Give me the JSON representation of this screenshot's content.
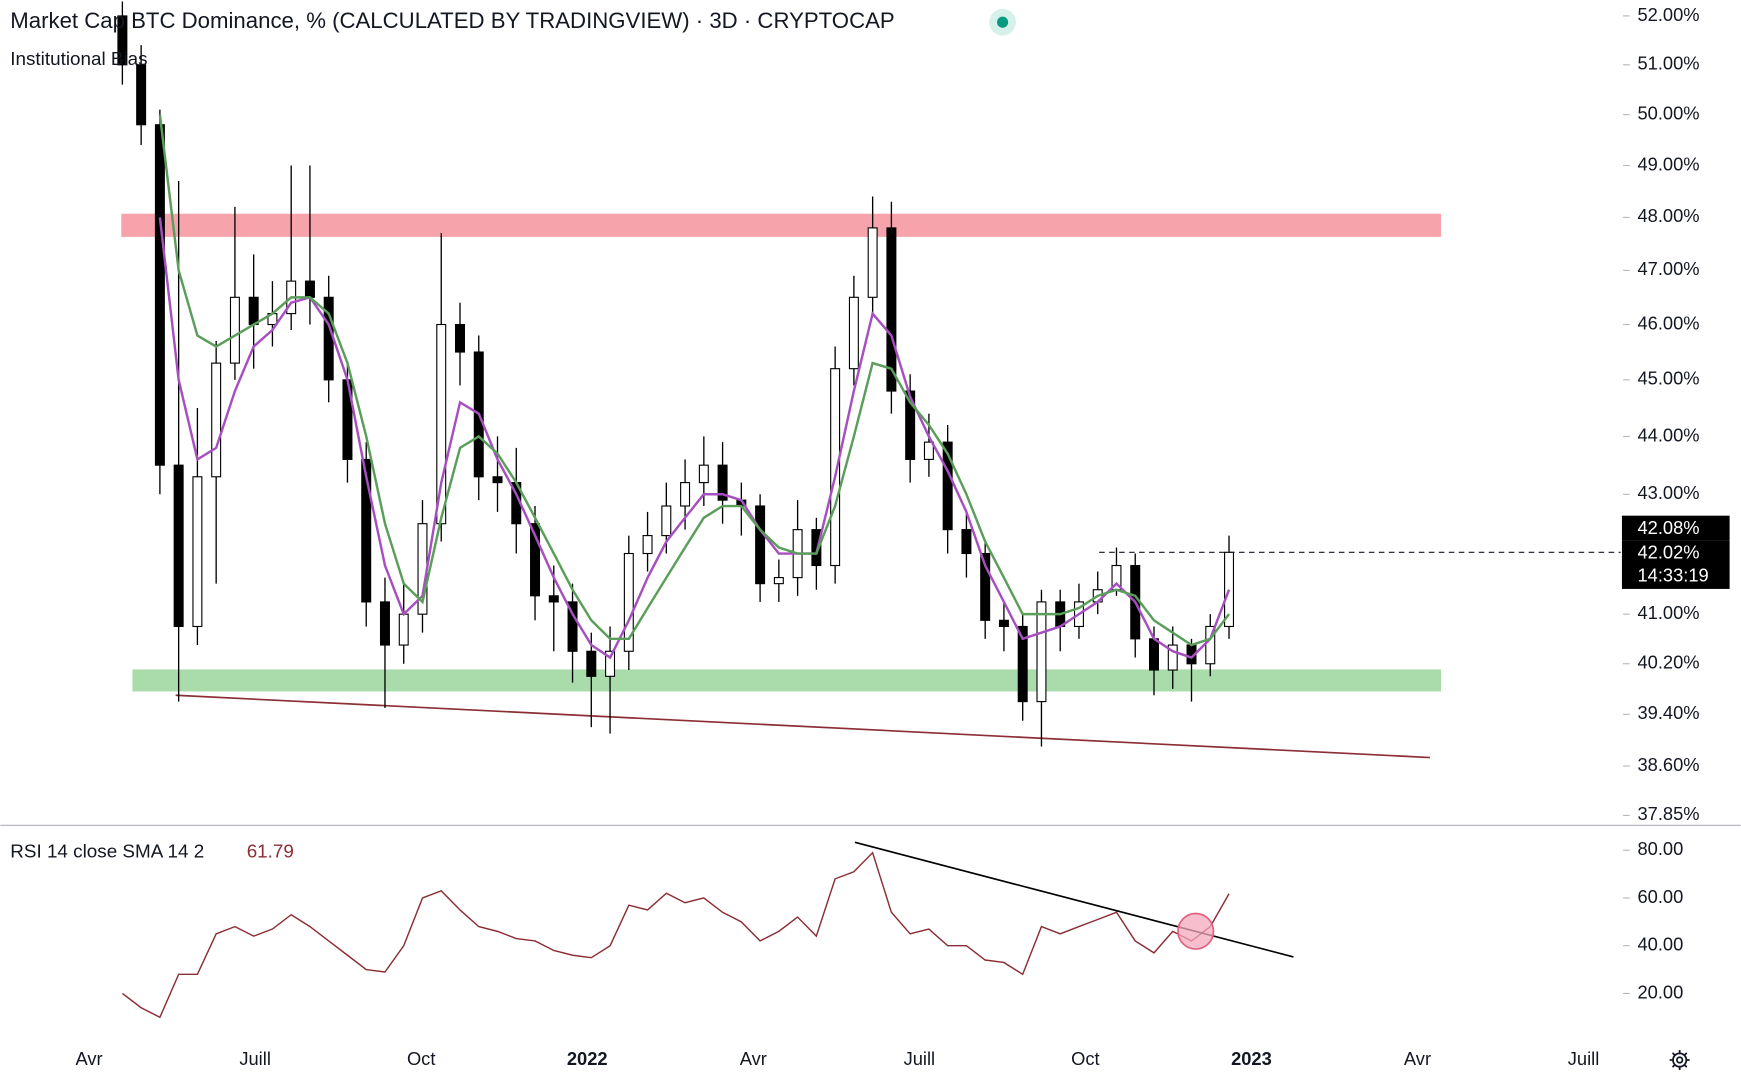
{
  "chart_data": [
    {
      "type": "candlestick",
      "title": "Market Cap BTC Dominance, % (CALCULATED BY TRADINGVIEW) · 3D · CRYPTOCAP",
      "subtitle": "Institutional Bias",
      "log_scale": true,
      "ylim": [
        37.71,
        52.33
      ],
      "yticks": [
        {
          "value": 52,
          "label": "52.00%"
        },
        {
          "value": 51,
          "label": "51.00%"
        },
        {
          "value": 50,
          "label": "50.00%"
        },
        {
          "value": 49,
          "label": "49.00%"
        },
        {
          "value": 48,
          "label": "48.00%"
        },
        {
          "value": 47,
          "label": "47.00%"
        },
        {
          "value": 46,
          "label": "46.00%"
        },
        {
          "value": 45,
          "label": "45.00%"
        },
        {
          "value": 44,
          "label": "44.00%"
        },
        {
          "value": 43,
          "label": "43.00%"
        },
        {
          "value": 41,
          "label": "41.00%"
        },
        {
          "value": 40.2,
          "label": "40.20%"
        },
        {
          "value": 39.4,
          "label": "39.40%"
        },
        {
          "value": 38.6,
          "label": "38.60%"
        },
        {
          "value": 37.85,
          "label": "37.85%"
        }
      ],
      "open": [
        52.0,
        51.0,
        49.8,
        43.5,
        40.8,
        43.3,
        45.3,
        46.5,
        46.0,
        46.2,
        46.8,
        46.5,
        45.0,
        43.6,
        41.2,
        40.5,
        41.0,
        42.5,
        46.0,
        45.5,
        43.3,
        43.2,
        42.5,
        41.3,
        41.2,
        40.4,
        40.0,
        40.4,
        42.0,
        42.3,
        42.8,
        43.2,
        43.5,
        42.9,
        42.8,
        41.5,
        41.6,
        42.4,
        41.8,
        45.2,
        46.5,
        47.8,
        44.8,
        43.6,
        43.9,
        42.4,
        42.0,
        40.9,
        40.8,
        39.6,
        41.2,
        40.8,
        41.2,
        41.4,
        41.8,
        40.6,
        40.1,
        40.5,
        40.2,
        40.8
      ],
      "high": [
        52.3,
        51.4,
        50.1,
        48.7,
        44.5,
        45.7,
        48.2,
        47.3,
        46.8,
        49.0,
        49.0,
        46.9,
        45.3,
        43.9,
        41.6,
        41.5,
        42.9,
        47.7,
        46.4,
        45.8,
        44.0,
        43.8,
        42.8,
        41.8,
        41.5,
        40.7,
        40.8,
        42.3,
        42.7,
        43.2,
        43.6,
        44.0,
        43.9,
        43.2,
        43.0,
        41.9,
        42.9,
        42.6,
        45.6,
        46.9,
        48.4,
        48.3,
        45.1,
        44.4,
        44.2,
        42.7,
        42.2,
        41.2,
        41.0,
        41.4,
        41.4,
        41.5,
        41.7,
        42.1,
        42.0,
        40.8,
        40.8,
        40.6,
        41.0,
        42.3
      ],
      "low": [
        50.6,
        49.4,
        43.0,
        39.6,
        40.5,
        41.5,
        45.0,
        45.2,
        45.6,
        45.9,
        46.0,
        44.6,
        43.2,
        40.8,
        39.5,
        40.2,
        40.7,
        42.2,
        44.9,
        42.9,
        42.7,
        42.0,
        40.9,
        40.4,
        39.9,
        39.2,
        39.1,
        40.1,
        41.7,
        42.0,
        42.4,
        42.8,
        42.5,
        42.3,
        41.2,
        41.2,
        41.3,
        41.4,
        41.5,
        44.9,
        46.2,
        44.4,
        43.2,
        43.3,
        42.0,
        41.6,
        40.6,
        40.4,
        39.3,
        38.9,
        40.4,
        40.6,
        41.0,
        41.3,
        40.3,
        39.7,
        39.8,
        39.6,
        40.0,
        40.6
      ],
      "close": [
        51.0,
        49.8,
        43.5,
        40.8,
        43.3,
        45.3,
        46.5,
        46.0,
        46.2,
        46.8,
        46.5,
        45.0,
        43.6,
        41.2,
        40.5,
        41.0,
        42.5,
        46.0,
        45.5,
        43.3,
        43.2,
        42.5,
        41.3,
        41.2,
        40.4,
        40.0,
        40.4,
        42.0,
        42.3,
        42.8,
        43.2,
        43.5,
        42.9,
        42.8,
        41.5,
        41.6,
        42.4,
        41.8,
        45.2,
        46.5,
        47.8,
        44.8,
        43.6,
        43.9,
        42.4,
        42.0,
        40.9,
        40.8,
        39.6,
        41.2,
        40.8,
        41.2,
        41.4,
        41.8,
        40.6,
        40.1,
        40.5,
        40.2,
        40.8,
        42.02
      ],
      "overlays": [
        {
          "color": "#a64fc0",
          "values": [
            null,
            null,
            48.0,
            45.0,
            43.6,
            43.8,
            44.8,
            45.6,
            45.9,
            46.4,
            46.5,
            46.0,
            45.0,
            43.3,
            41.8,
            41.0,
            41.3,
            43.2,
            44.6,
            44.4,
            43.6,
            43.0,
            42.3,
            41.6,
            41.0,
            40.5,
            40.3,
            40.9,
            41.6,
            42.2,
            42.6,
            43.0,
            43.0,
            42.9,
            42.4,
            42.0,
            42.0,
            42.0,
            43.3,
            44.8,
            46.2,
            45.8,
            44.7,
            44.0,
            43.4,
            42.7,
            41.8,
            41.2,
            40.6,
            40.7,
            40.8,
            41.0,
            41.2,
            41.5,
            41.2,
            40.6,
            40.4,
            40.3,
            40.6,
            41.4
          ]
        },
        {
          "color": "#5a9e5a",
          "values": [
            null,
            null,
            50.0,
            47.0,
            45.8,
            45.6,
            45.8,
            46.0,
            46.2,
            46.5,
            46.5,
            46.2,
            45.3,
            44.0,
            42.5,
            41.5,
            41.2,
            42.6,
            43.8,
            44.0,
            43.7,
            43.2,
            42.6,
            42.0,
            41.4,
            40.9,
            40.6,
            40.6,
            41.1,
            41.6,
            42.1,
            42.6,
            42.8,
            42.8,
            42.4,
            42.1,
            42.0,
            42.0,
            42.8,
            44.0,
            45.3,
            45.2,
            44.6,
            44.2,
            43.7,
            43.0,
            42.2,
            41.6,
            41.0,
            41.0,
            41.0,
            41.1,
            41.3,
            41.4,
            41.3,
            40.9,
            40.7,
            40.5,
            40.6,
            41.0
          ]
        }
      ],
      "zones": [
        {
          "color": "#f7a3ab",
          "range": [
            47.63,
            48.07
          ]
        },
        {
          "color": "#a9dcaa",
          "range": [
            39.76,
            40.11
          ]
        }
      ],
      "trendline": {
        "color": "#8b2e35",
        "values": [
          39.7,
          38.73
        ]
      },
      "last_price": {
        "value": 42.02,
        "label": "42.02%"
      },
      "high_price": {
        "value": 42.08,
        "label": "42.08%"
      },
      "countdown": "14:33:19"
    },
    {
      "type": "line",
      "title": "RSI 14 close SMA 14 2",
      "color": "#8b2e35",
      "values": [
        20,
        14,
        10,
        28,
        28,
        45,
        48,
        44,
        47,
        53,
        48,
        42,
        36,
        30,
        29,
        40,
        60,
        63,
        55,
        48,
        46,
        43,
        42,
        38,
        36,
        35,
        40,
        57,
        55,
        62,
        58,
        60,
        54,
        50,
        42,
        46,
        52,
        44,
        68,
        71,
        79,
        54,
        45,
        47,
        40,
        40,
        34,
        33,
        28,
        48,
        45,
        48,
        51,
        54,
        42,
        37,
        46,
        42,
        48,
        61.79
      ],
      "ylim": [
        1.4,
        90.7
      ],
      "yticks": [
        {
          "value": 80,
          "label": "80.00"
        },
        {
          "value": 60,
          "label": "60.00"
        },
        {
          "value": 40,
          "label": "40.00"
        },
        {
          "value": 20,
          "label": "20.00"
        }
      ],
      "trendline": {
        "color": "#000000",
        "values": [
          83.3,
          35.3
        ]
      },
      "xtick_labels": [
        "Avr",
        "Juill",
        "Oct",
        "2022",
        "Avr",
        "Juill",
        "Oct",
        "2023",
        "Avr",
        "Juill"
      ]
    }
  ]
}
